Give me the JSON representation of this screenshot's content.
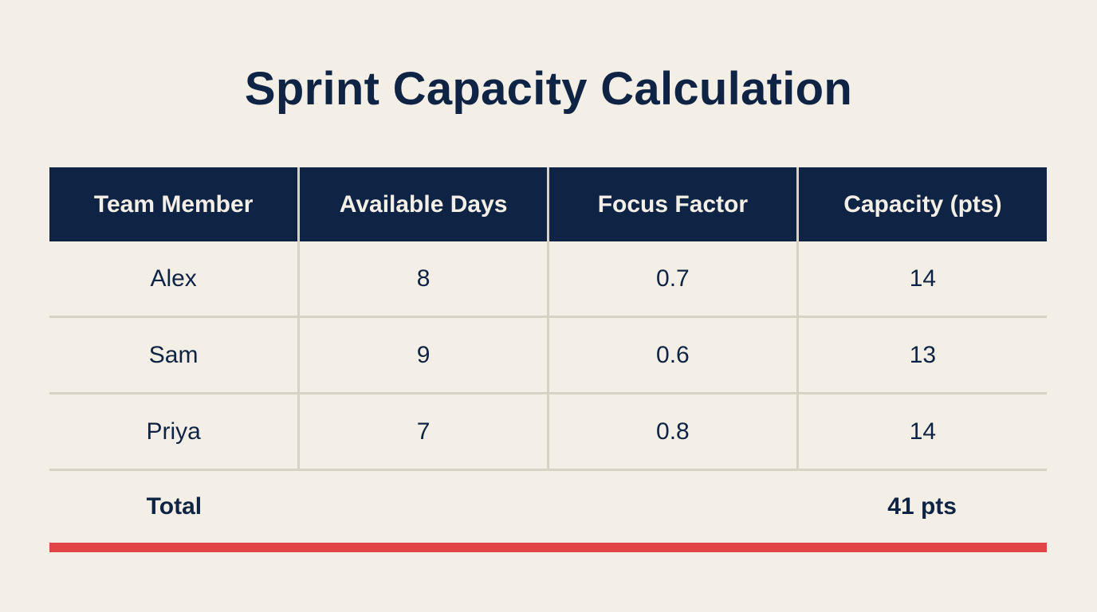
{
  "title": "Sprint Capacity Calculation",
  "table": {
    "headers": [
      "Team Member",
      "Available Days",
      "Focus Factor",
      "Capacity (pts)"
    ],
    "rows": [
      [
        "Alex",
        "8",
        "0.7",
        "14"
      ],
      [
        "Sam",
        "9",
        "0.6",
        "13"
      ],
      [
        "Priya",
        "7",
        "0.8",
        "14"
      ]
    ],
    "total": {
      "label": "Total",
      "value": "41 pts"
    }
  },
  "colors": {
    "navy": "#0f2444",
    "background": "#f3efe6",
    "grid": "#d8d2c4",
    "accent": "#e04444"
  }
}
